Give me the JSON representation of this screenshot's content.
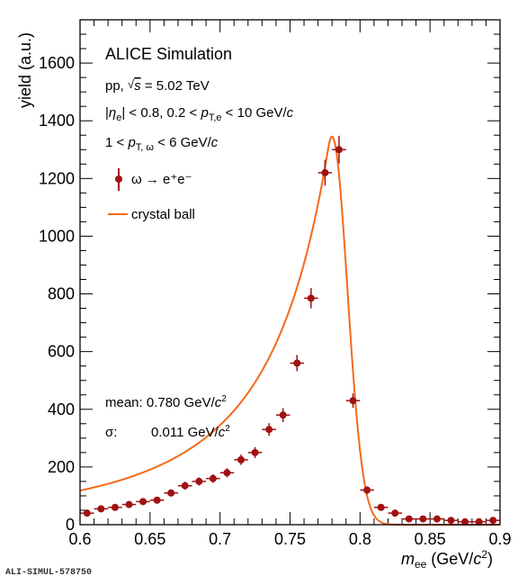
{
  "footer_id": "ALI-SIMUL-578750",
  "colors": {
    "data": "#a01212",
    "fit": "#f26a1a",
    "axis": "#000000"
  },
  "annotations": {
    "collab": "ALICE Simulation",
    "system": "pp, √s = 5.02 TeV",
    "cut_eta": "|ηe| < 0.8, 0.2 < pT,e < 10 GeV/c",
    "cut_pt": "1 < pT, ω < 6 GeV/c",
    "legend_data": "ω → e⁺e⁻",
    "legend_fit": "crystal ball",
    "mean": "mean: 0.780 GeV/c²",
    "sigma_label": "σ:",
    "sigma_value": "0.011 GeV/c²"
  },
  "chart_data": {
    "type": "scatter",
    "title": "ALICE Simulation",
    "xlabel": "mee (GeV/c²)",
    "ylabel": "yield (a.u.)",
    "xlim": [
      0.6,
      0.9
    ],
    "ylim": [
      0,
      1750
    ],
    "x_ticks": [
      "0.6",
      "0.65",
      "0.7",
      "0.75",
      "0.8",
      "0.85",
      "0.9"
    ],
    "y_ticks": [
      "0",
      "200",
      "400",
      "600",
      "800",
      "1000",
      "1200",
      "1400",
      "1600"
    ],
    "series": [
      {
        "name": "ω → e⁺e⁻",
        "kind": "points",
        "x": [
          0.605,
          0.615,
          0.625,
          0.635,
          0.645,
          0.655,
          0.665,
          0.675,
          0.685,
          0.695,
          0.705,
          0.715,
          0.725,
          0.735,
          0.745,
          0.755,
          0.765,
          0.775,
          0.785,
          0.795,
          0.805,
          0.815,
          0.825,
          0.835,
          0.845,
          0.855,
          0.865,
          0.875,
          0.885,
          0.895
        ],
        "y": [
          40,
          55,
          60,
          70,
          80,
          85,
          110,
          135,
          150,
          160,
          180,
          225,
          250,
          330,
          380,
          560,
          785,
          1220,
          1300,
          430,
          120,
          60,
          40,
          20,
          20,
          20,
          15,
          10,
          10,
          15
        ],
        "yerr": [
          8,
          9,
          9,
          10,
          10,
          11,
          12,
          14,
          14,
          15,
          16,
          18,
          19,
          22,
          24,
          28,
          35,
          45,
          48,
          25,
          13,
          9,
          8,
          6,
          6,
          6,
          5,
          4,
          4,
          5
        ],
        "xerr": 0.005
      },
      {
        "name": "crystal ball",
        "kind": "line",
        "function": "crystal_ball",
        "mean": 0.78,
        "sigma": 0.011,
        "alpha": 0.25,
        "n": 2.5,
        "amplitude": 1345
      }
    ],
    "legend_position": "top-left",
    "grid": false
  }
}
